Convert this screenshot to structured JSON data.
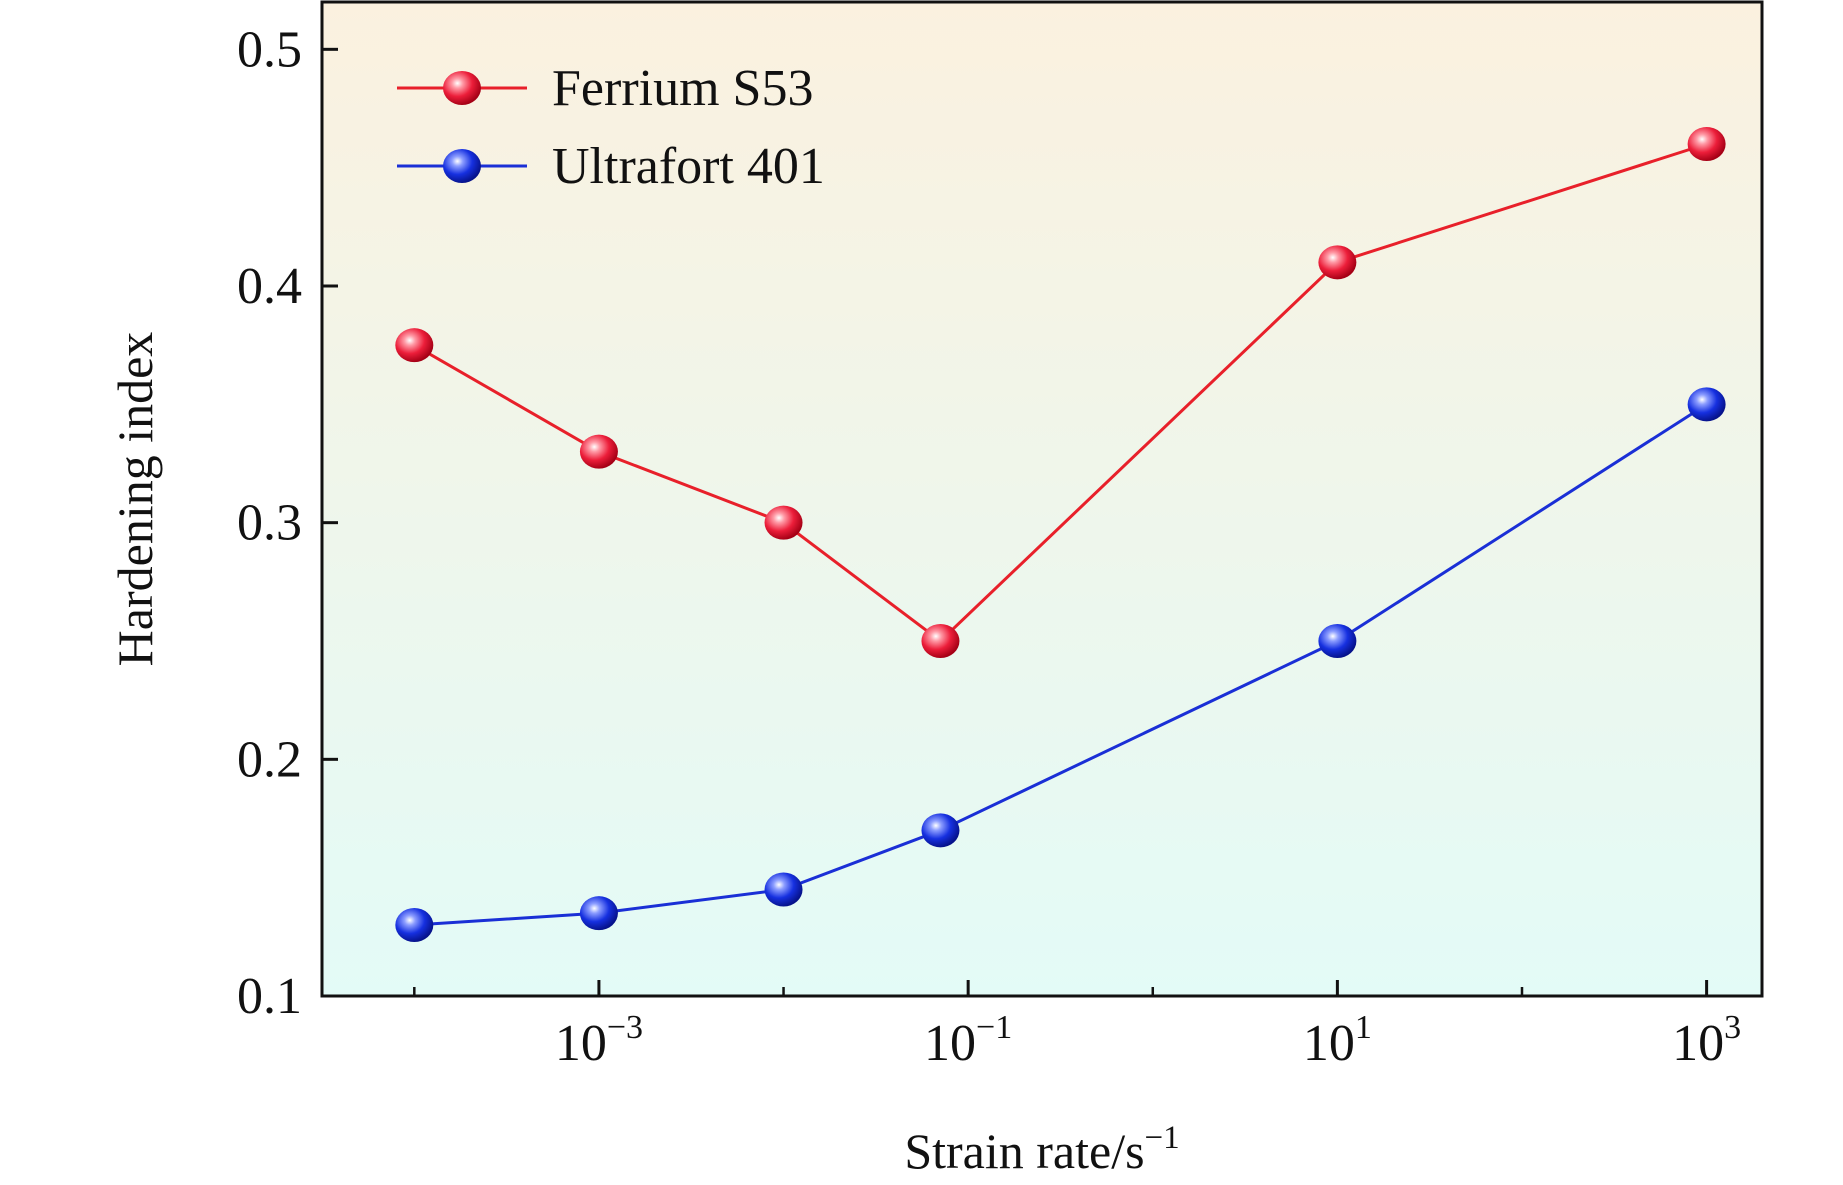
{
  "chart_data": {
    "type": "line",
    "title": "",
    "xlabel": "Strain rate/s",
    "xlabel_sup": "−1",
    "ylabel": "Hardening index",
    "x_scale": "log10",
    "xlim_log10": [
      -4.5,
      3.3
    ],
    "ylim": [
      0.1,
      0.52
    ],
    "y_ticks": [
      {
        "value": 0.1,
        "label": "0.1"
      },
      {
        "value": 0.2,
        "label": "0.2"
      },
      {
        "value": 0.3,
        "label": "0.3"
      },
      {
        "value": 0.4,
        "label": "0.4"
      },
      {
        "value": 0.5,
        "label": "0.5"
      }
    ],
    "x_ticks": [
      {
        "log10": -3,
        "base": "10",
        "exp": "−3"
      },
      {
        "log10": -1,
        "base": "10",
        "exp": "−1"
      },
      {
        "log10": 1,
        "base": "10",
        "exp": "1"
      },
      {
        "log10": 3,
        "base": "10",
        "exp": "3"
      }
    ],
    "x_log10": [
      -4,
      -3,
      -2,
      -1.15,
      1,
      3
    ],
    "series": [
      {
        "name": "Ferrium S53",
        "color": "#e8202a",
        "values": [
          0.375,
          0.33,
          0.3,
          0.25,
          0.41,
          0.46
        ]
      },
      {
        "name": "Ultrafort 401",
        "color": "#1a2fd6",
        "values": [
          0.13,
          0.135,
          0.145,
          0.17,
          0.25,
          0.35
        ]
      }
    ],
    "legend": {
      "position": "top-left"
    },
    "background_gradient": {
      "top": "#fbf1df",
      "bottom": "#e3fbf7"
    },
    "grid": false
  }
}
